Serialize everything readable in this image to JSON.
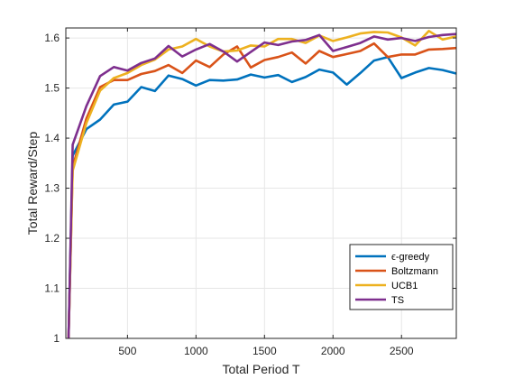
{
  "chart_data": {
    "type": "line",
    "xlabel": "Total Period T",
    "ylabel": "Total Reward/Step",
    "xlim": [
      50,
      2900
    ],
    "ylim": [
      1.0,
      1.62
    ],
    "xticks": [
      500,
      1000,
      1500,
      2000,
      2500
    ],
    "yticks": [
      1,
      1.1,
      1.2,
      1.3,
      1.4,
      1.5,
      1.6
    ],
    "ytick_labels": [
      "1",
      "1.1",
      "1.2",
      "1.3",
      "1.4",
      "1.5",
      "1.6"
    ],
    "grid": true,
    "legend_position": "bottom-right",
    "x": [
      100,
      200,
      300,
      400,
      500,
      600,
      700,
      800,
      900,
      1000,
      1100,
      1200,
      1300,
      1400,
      1500,
      1600,
      1700,
      1800,
      1900,
      2000,
      2100,
      2200,
      2300,
      2400,
      2500,
      2600,
      2700,
      2800,
      2900
    ],
    "series": [
      {
        "name": "ϵ-greedy",
        "color": "#0072BD",
        "start": [
          70,
          1.0
        ],
        "values": [
          1.365,
          1.418,
          1.437,
          1.467,
          1.473,
          1.502,
          1.494,
          1.525,
          1.518,
          1.505,
          1.516,
          1.515,
          1.517,
          1.527,
          1.521,
          1.526,
          1.512,
          1.522,
          1.537,
          1.531,
          1.507,
          1.53,
          1.555,
          1.562,
          1.52,
          1.531,
          1.54,
          1.536,
          1.529
        ]
      },
      {
        "name": "Boltzmann",
        "color": "#D95319",
        "start": [
          70,
          1.0
        ],
        "values": [
          1.342,
          1.439,
          1.502,
          1.516,
          1.516,
          1.528,
          1.534,
          1.546,
          1.53,
          1.555,
          1.542,
          1.567,
          1.583,
          1.541,
          1.556,
          1.562,
          1.571,
          1.549,
          1.574,
          1.562,
          1.568,
          1.574,
          1.589,
          1.562,
          1.567,
          1.567,
          1.577,
          1.578,
          1.58
        ]
      },
      {
        "name": "UCB1",
        "color": "#EDB120",
        "start": [
          70,
          1.0
        ],
        "values": [
          1.335,
          1.43,
          1.495,
          1.52,
          1.53,
          1.546,
          1.557,
          1.577,
          1.583,
          1.598,
          1.583,
          1.573,
          1.575,
          1.585,
          1.583,
          1.598,
          1.598,
          1.59,
          1.605,
          1.594,
          1.601,
          1.609,
          1.612,
          1.611,
          1.601,
          1.585,
          1.614,
          1.597,
          1.603
        ]
      },
      {
        "name": "TS",
        "color": "#7E2F8E",
        "start": [
          70,
          1.0
        ],
        "values": [
          1.387,
          1.464,
          1.524,
          1.542,
          1.535,
          1.55,
          1.559,
          1.584,
          1.563,
          1.577,
          1.588,
          1.573,
          1.553,
          1.572,
          1.591,
          1.586,
          1.593,
          1.596,
          1.606,
          1.574,
          1.582,
          1.59,
          1.603,
          1.597,
          1.6,
          1.594,
          1.602,
          1.606,
          1.608
        ]
      }
    ]
  }
}
